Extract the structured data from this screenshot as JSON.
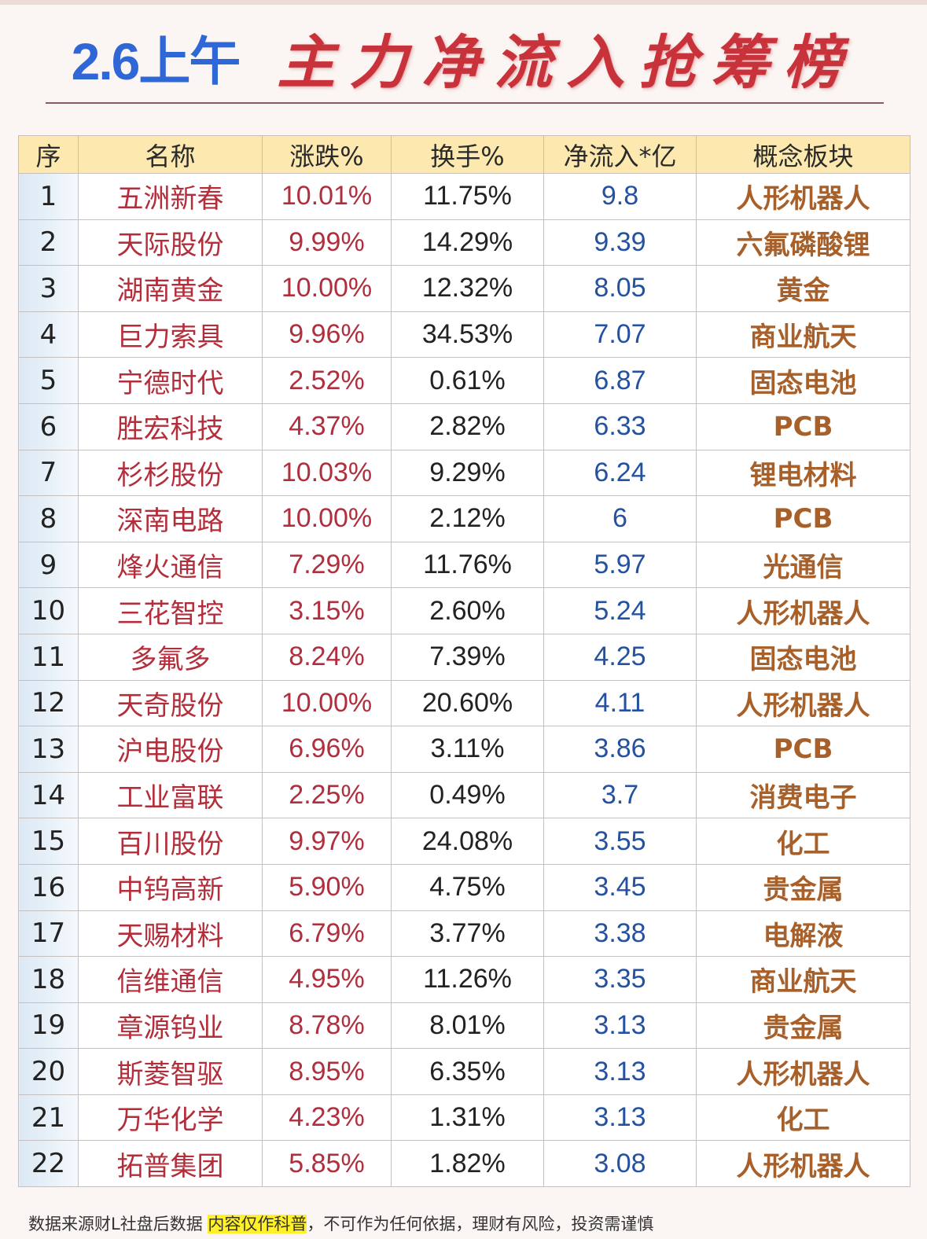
{
  "title": {
    "date": "2.6上午",
    "main": "主力净流入抢筹榜"
  },
  "colors": {
    "date": "#2f67d6",
    "title": "#c8323a",
    "header_bg": "#fde9b0",
    "name": "#b32e3a",
    "change": "#b02f3e",
    "flow": "#2451a0",
    "concept": "#a8602a"
  },
  "table": {
    "headers": [
      "序",
      "名称",
      "涨跌%",
      "换手%",
      "净流入*亿",
      "概念板块"
    ],
    "rows": [
      {
        "no": "1",
        "name": "五洲新春",
        "change": "10.01%",
        "turnover": "11.75%",
        "inflow": "9.8",
        "concept": "人形机器人"
      },
      {
        "no": "2",
        "name": "天际股份",
        "change": "9.99%",
        "turnover": "14.29%",
        "inflow": "9.39",
        "concept": "六氟磷酸锂"
      },
      {
        "no": "3",
        "name": "湖南黄金",
        "change": "10.00%",
        "turnover": "12.32%",
        "inflow": "8.05",
        "concept": "黄金"
      },
      {
        "no": "4",
        "name": "巨力索具",
        "change": "9.96%",
        "turnover": "34.53%",
        "inflow": "7.07",
        "concept": "商业航天"
      },
      {
        "no": "5",
        "name": "宁德时代",
        "change": "2.52%",
        "turnover": "0.61%",
        "inflow": "6.87",
        "concept": "固态电池"
      },
      {
        "no": "6",
        "name": "胜宏科技",
        "change": "4.37%",
        "turnover": "2.82%",
        "inflow": "6.33",
        "concept": "PCB"
      },
      {
        "no": "7",
        "name": "杉杉股份",
        "change": "10.03%",
        "turnover": "9.29%",
        "inflow": "6.24",
        "concept": "锂电材料"
      },
      {
        "no": "8",
        "name": "深南电路",
        "change": "10.00%",
        "turnover": "2.12%",
        "inflow": "6",
        "concept": "PCB"
      },
      {
        "no": "9",
        "name": "烽火通信",
        "change": "7.29%",
        "turnover": "11.76%",
        "inflow": "5.97",
        "concept": "光通信"
      },
      {
        "no": "10",
        "name": "三花智控",
        "change": "3.15%",
        "turnover": "2.60%",
        "inflow": "5.24",
        "concept": "人形机器人"
      },
      {
        "no": "11",
        "name": "多氟多",
        "change": "8.24%",
        "turnover": "7.39%",
        "inflow": "4.25",
        "concept": "固态电池"
      },
      {
        "no": "12",
        "name": "天奇股份",
        "change": "10.00%",
        "turnover": "20.60%",
        "inflow": "4.11",
        "concept": "人形机器人"
      },
      {
        "no": "13",
        "name": "沪电股份",
        "change": "6.96%",
        "turnover": "3.11%",
        "inflow": "3.86",
        "concept": "PCB"
      },
      {
        "no": "14",
        "name": "工业富联",
        "change": "2.25%",
        "turnover": "0.49%",
        "inflow": "3.7",
        "concept": "消费电子"
      },
      {
        "no": "15",
        "name": "百川股份",
        "change": "9.97%",
        "turnover": "24.08%",
        "inflow": "3.55",
        "concept": "化工"
      },
      {
        "no": "16",
        "name": "中钨高新",
        "change": "5.90%",
        "turnover": "4.75%",
        "inflow": "3.45",
        "concept": "贵金属"
      },
      {
        "no": "17",
        "name": "天赐材料",
        "change": "6.79%",
        "turnover": "3.77%",
        "inflow": "3.38",
        "concept": "电解液"
      },
      {
        "no": "18",
        "name": "信维通信",
        "change": "4.95%",
        "turnover": "11.26%",
        "inflow": "3.35",
        "concept": "商业航天"
      },
      {
        "no": "19",
        "name": "章源钨业",
        "change": "8.78%",
        "turnover": "8.01%",
        "inflow": "3.13",
        "concept": "贵金属"
      },
      {
        "no": "20",
        "name": "斯菱智驱",
        "change": "8.95%",
        "turnover": "6.35%",
        "inflow": "3.13",
        "concept": "人形机器人"
      },
      {
        "no": "21",
        "name": "万华化学",
        "change": "4.23%",
        "turnover": "1.31%",
        "inflow": "3.13",
        "concept": "化工"
      },
      {
        "no": "22",
        "name": "拓普集团",
        "change": "5.85%",
        "turnover": "1.82%",
        "inflow": "3.08",
        "concept": "人形机器人"
      }
    ]
  },
  "footer": {
    "source": "数据来源财L社盘后数据",
    "highlight": "内容仅作科普",
    "disclaimer": "，不可作为任何依据，理财有风险，投资需谨慎"
  }
}
